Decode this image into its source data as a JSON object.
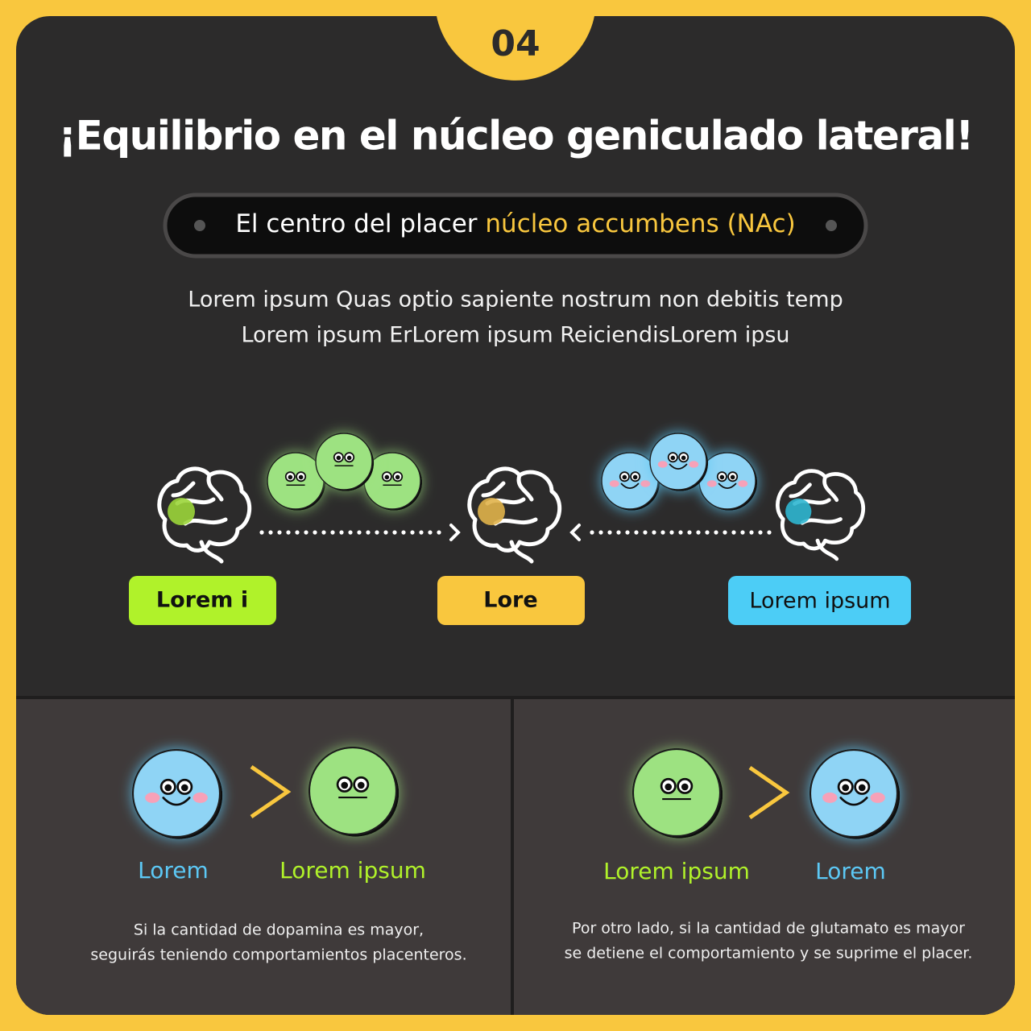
{
  "badge": "04",
  "title": "¡Equilibrio en el núcleo geniculado lateral!",
  "pill": {
    "text": "El centro del placer ",
    "highlight": "núcleo accumbens (NAc)"
  },
  "intro": [
    "Lorem ipsum Quas optio sapiente nostrum non debitis temp",
    "Lorem ipsum ErLorem ipsum ReiciendisLorem ipsu"
  ],
  "labels": [
    "Lorem i",
    "Lore",
    "Lorem ipsum"
  ],
  "panels": [
    {
      "left": "Lorem",
      "right": "Lorem ipsum",
      "caption": [
        "Si la cantidad de dopamina es mayor,",
        "seguirás teniendo comportamientos placenteros."
      ]
    },
    {
      "left": "Lorem ipsum",
      "right": "Lorem",
      "caption": [
        "Por otro lado, si la cantidad de glutamato es mayor",
        "se detiene el comportamiento y se suprime el placer."
      ]
    }
  ]
}
